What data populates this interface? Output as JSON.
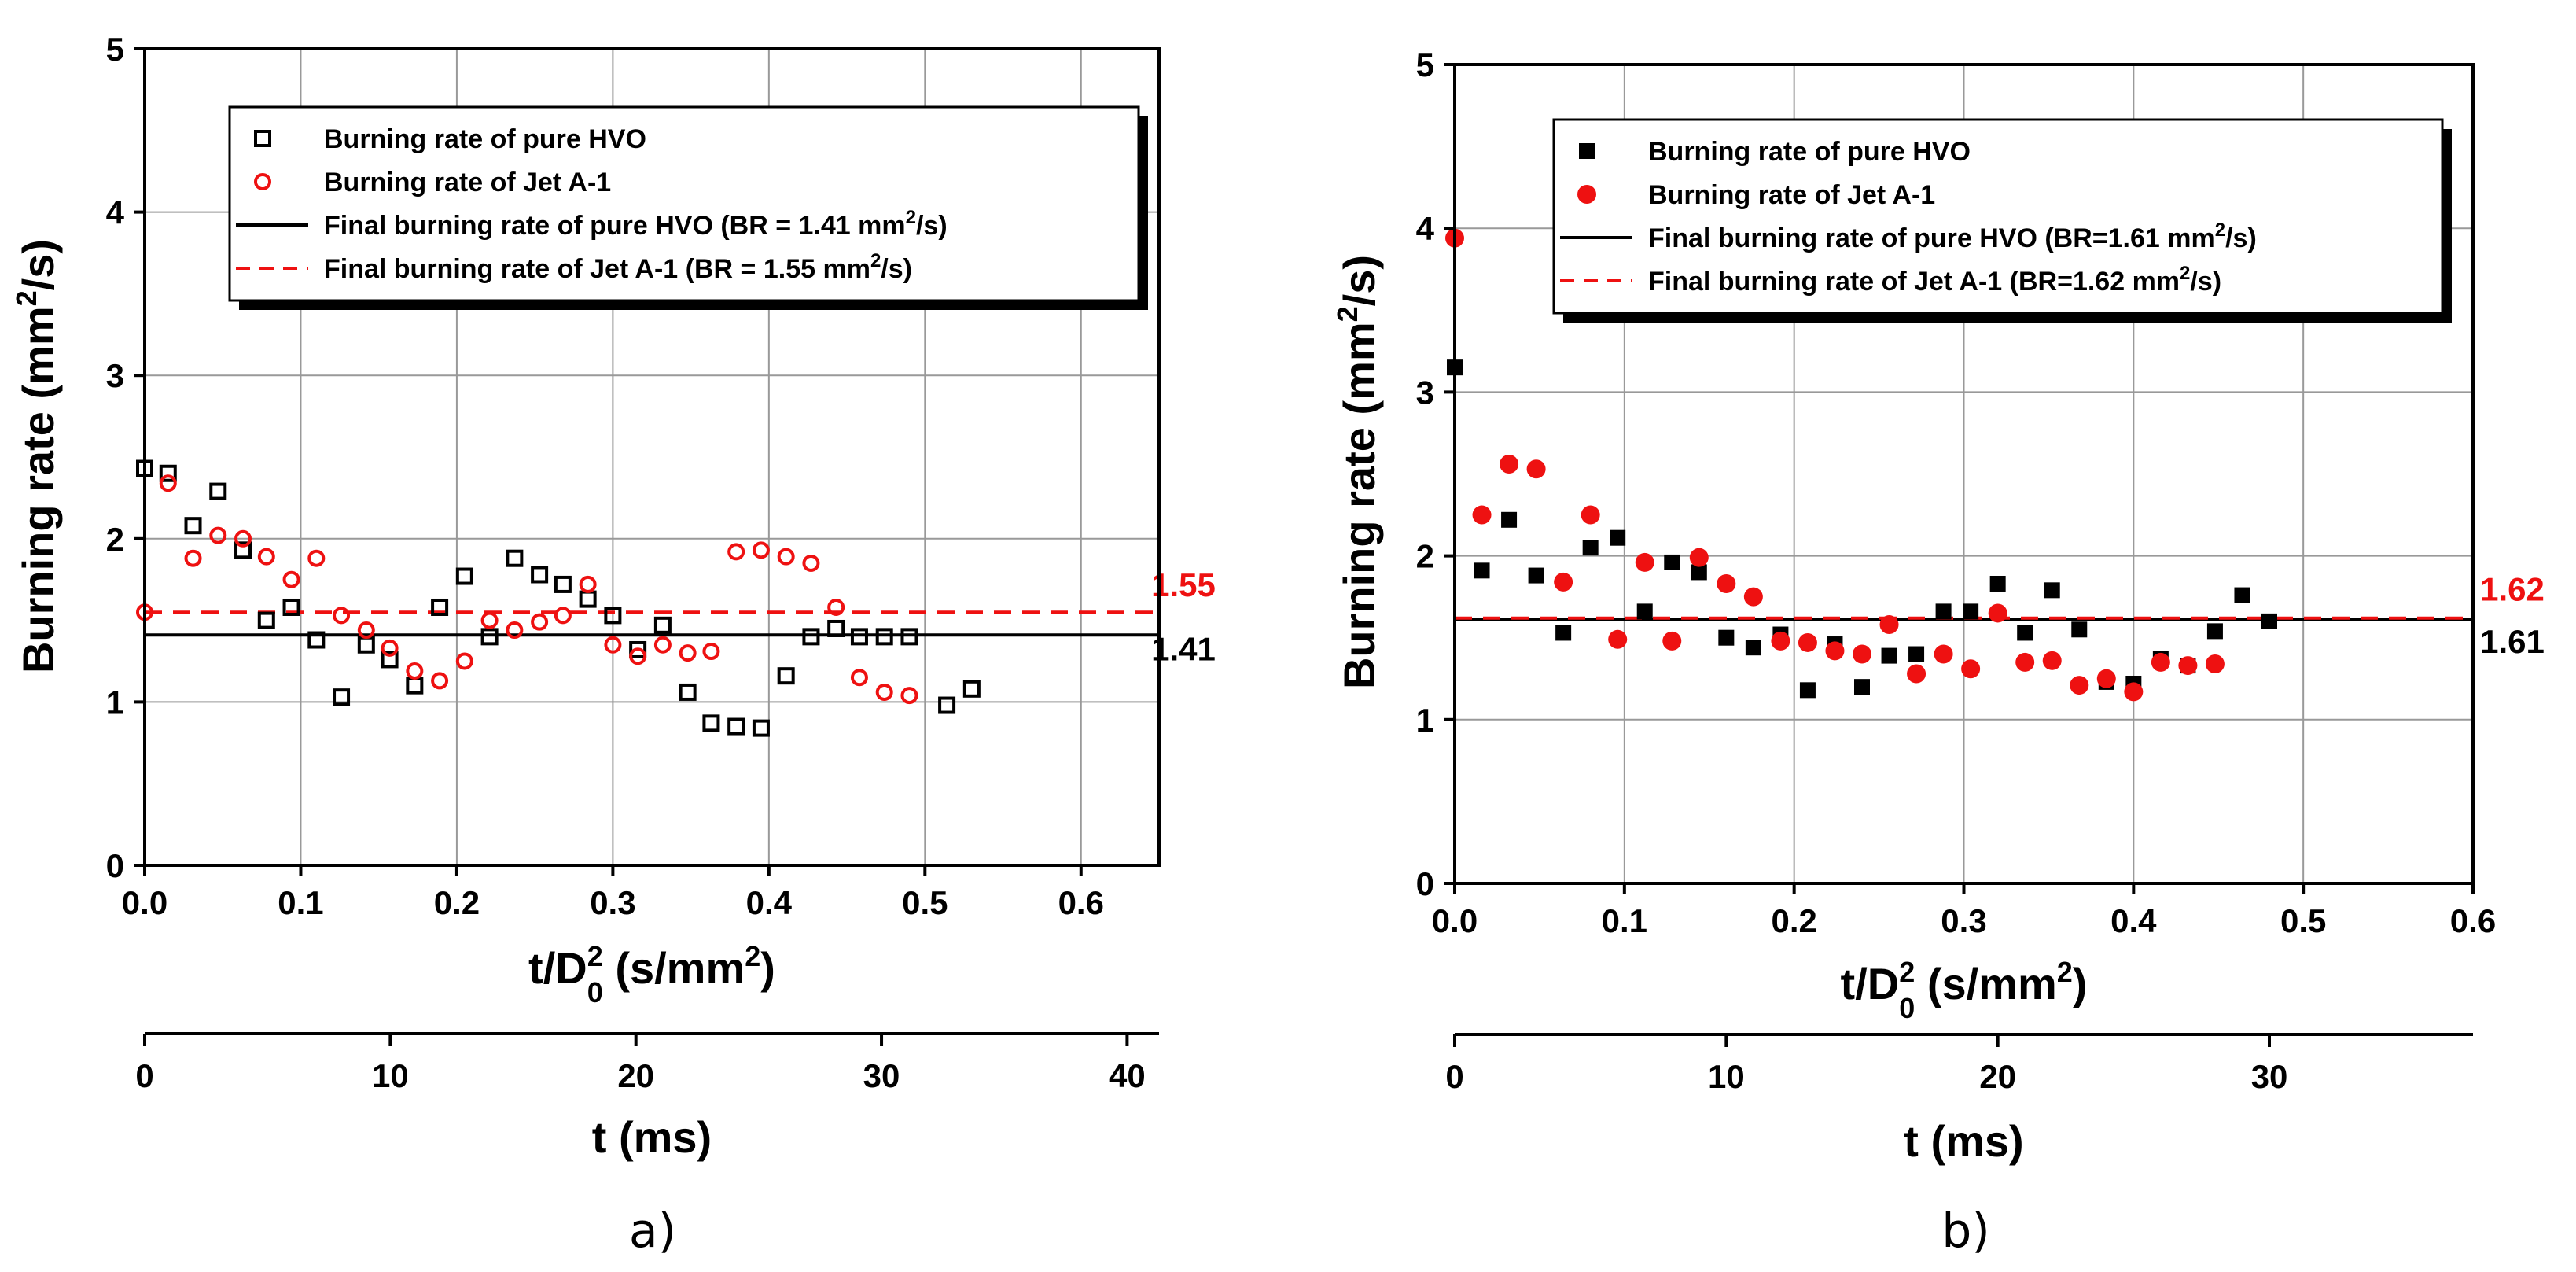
{
  "chart_data": [
    {
      "type": "scatter",
      "panel_label": "a)",
      "marker_style": "hollow",
      "xlabel_main": "t/D",
      "xlabel_sup": "2",
      "xlabel_sub": "0",
      "xlabel_units": " (s/mm",
      "xlabel_units_sup": "2",
      "xlabel_close": ")",
      "ylabel_main": "Burning rate (mm",
      "ylabel_sup": "2",
      "ylabel_close": "/s)",
      "x2label": "t (ms)",
      "xlim": [
        0,
        0.65
      ],
      "ylim": [
        0,
        5
      ],
      "x2lim": [
        0,
        41.3
      ],
      "xticks": [
        "0.0",
        "0.1",
        "0.2",
        "0.3",
        "0.4",
        "0.5",
        "0.6"
      ],
      "xtick_values": [
        0,
        0.1,
        0.2,
        0.3,
        0.4,
        0.5,
        0.6
      ],
      "yticks": [
        "0",
        "1",
        "2",
        "3",
        "4",
        "5"
      ],
      "ytick_values": [
        0,
        1,
        2,
        3,
        4,
        5
      ],
      "x2ticks": [
        "0",
        "10",
        "20",
        "30",
        "40"
      ],
      "x2tick_values": [
        0,
        10,
        20,
        30,
        40
      ],
      "grid": true,
      "legend_position": "top-right",
      "series": [
        {
          "name": "Burning rate of pure HVO",
          "color": "#000000",
          "marker": "square",
          "x": [
            0.0,
            0.015,
            0.031,
            0.047,
            0.063,
            0.078,
            0.094,
            0.11,
            0.126,
            0.142,
            0.157,
            0.173,
            0.189,
            0.205,
            0.221,
            0.237,
            0.253,
            0.268,
            0.284,
            0.3,
            0.316,
            0.332,
            0.348,
            0.363,
            0.379,
            0.395,
            0.411,
            0.427,
            0.443,
            0.458,
            0.474,
            0.49,
            0.514,
            0.53
          ],
          "y": [
            2.43,
            2.4,
            2.08,
            2.29,
            1.93,
            1.5,
            1.58,
            1.38,
            1.03,
            1.35,
            1.26,
            1.1,
            1.58,
            1.77,
            1.4,
            1.88,
            1.78,
            1.72,
            1.63,
            1.53,
            1.32,
            1.47,
            1.06,
            0.87,
            0.85,
            0.84,
            1.16,
            1.4,
            1.45,
            1.4,
            1.4,
            1.4,
            0.98,
            1.08
          ]
        },
        {
          "name": "Burning rate of Jet A-1",
          "color": "#ee1111",
          "marker": "circle",
          "x": [
            0.0,
            0.015,
            0.031,
            0.047,
            0.063,
            0.078,
            0.094,
            0.11,
            0.126,
            0.142,
            0.157,
            0.173,
            0.189,
            0.205,
            0.221,
            0.237,
            0.253,
            0.268,
            0.284,
            0.3,
            0.316,
            0.332,
            0.348,
            0.363,
            0.379,
            0.395,
            0.411,
            0.427,
            0.443,
            0.458,
            0.474,
            0.49
          ],
          "y": [
            1.55,
            2.34,
            1.88,
            2.02,
            2.0,
            1.89,
            1.75,
            1.88,
            1.53,
            1.44,
            1.33,
            1.19,
            1.13,
            1.25,
            1.5,
            1.44,
            1.49,
            1.53,
            1.72,
            1.35,
            1.28,
            1.35,
            1.3,
            1.31,
            1.92,
            1.93,
            1.89,
            1.85,
            1.58,
            1.15,
            1.06,
            1.04
          ]
        }
      ],
      "reference_lines": [
        {
          "name": "Final burning rate of pure HVO (BR = 1.41 mm",
          "name_sup": "2",
          "name_close": "/s)",
          "y": 1.41,
          "style": "solid",
          "color": "#000000",
          "end_label": "1.41"
        },
        {
          "name": "Final burning rate of Jet A-1 (BR = 1.55 mm",
          "name_sup": "2",
          "name_close": "/s)",
          "y": 1.55,
          "style": "dashed",
          "color": "#ee1111",
          "end_label": "1.55"
        }
      ]
    },
    {
      "type": "scatter",
      "panel_label": "b)",
      "marker_style": "filled",
      "xlabel_main": "t/D",
      "xlabel_sup": "2",
      "xlabel_sub": "0",
      "xlabel_units": " (s/mm",
      "xlabel_units_sup": "2",
      "xlabel_close": ")",
      "ylabel_main": "Burning rate (mm",
      "ylabel_sup": "2",
      "ylabel_close": "/s)",
      "x2label": "t (ms)",
      "xlim": [
        0,
        0.6
      ],
      "ylim": [
        0,
        5
      ],
      "x2lim": [
        0,
        37.5
      ],
      "xticks": [
        "0.0",
        "0.1",
        "0.2",
        "0.3",
        "0.4",
        "0.5",
        "0.6"
      ],
      "xtick_values": [
        0,
        0.1,
        0.2,
        0.3,
        0.4,
        0.5,
        0.6
      ],
      "yticks": [
        "0",
        "1",
        "2",
        "3",
        "4",
        "5"
      ],
      "ytick_values": [
        0,
        1,
        2,
        3,
        4,
        5
      ],
      "x2ticks": [
        "0",
        "10",
        "20",
        "30"
      ],
      "x2tick_values": [
        0,
        10,
        20,
        30
      ],
      "grid": true,
      "legend_position": "top-right",
      "series": [
        {
          "name": "Burning rate of pure HVO",
          "color": "#000000",
          "marker": "square",
          "x": [
            0.0,
            0.016,
            0.032,
            0.048,
            0.064,
            0.08,
            0.096,
            0.112,
            0.128,
            0.144,
            0.16,
            0.176,
            0.192,
            0.208,
            0.224,
            0.24,
            0.256,
            0.272,
            0.288,
            0.304,
            0.32,
            0.336,
            0.352,
            0.368,
            0.384,
            0.4,
            0.416,
            0.432,
            0.448,
            0.464,
            0.48
          ],
          "y": [
            3.15,
            1.91,
            2.22,
            1.88,
            1.53,
            2.05,
            2.11,
            1.66,
            1.96,
            1.9,
            1.5,
            1.44,
            1.52,
            1.18,
            1.46,
            1.2,
            1.39,
            1.4,
            1.66,
            1.66,
            1.83,
            1.53,
            1.79,
            1.55,
            1.23,
            1.22,
            1.37,
            1.33,
            1.54,
            1.76,
            1.6
          ]
        },
        {
          "name": "Burning rate of Jet A-1",
          "color": "#ee1111",
          "marker": "circle",
          "x": [
            0.0,
            0.016,
            0.032,
            0.048,
            0.064,
            0.08,
            0.096,
            0.112,
            0.128,
            0.144,
            0.16,
            0.176,
            0.192,
            0.208,
            0.224,
            0.24,
            0.256,
            0.272,
            0.288,
            0.304,
            0.32,
            0.336,
            0.352,
            0.368,
            0.384,
            0.4,
            0.416,
            0.432,
            0.448
          ],
          "y": [
            3.94,
            2.25,
            2.56,
            2.53,
            1.84,
            2.25,
            1.49,
            1.96,
            1.48,
            1.99,
            1.83,
            1.75,
            1.48,
            1.47,
            1.42,
            1.4,
            1.58,
            1.28,
            1.4,
            1.31,
            1.65,
            1.35,
            1.36,
            1.21,
            1.25,
            1.17,
            1.35,
            1.33,
            1.34
          ]
        }
      ],
      "reference_lines": [
        {
          "name": "Final burning rate of pure HVO (BR=1.61 mm",
          "name_sup": "2",
          "name_close": "/s)",
          "y": 1.61,
          "style": "solid",
          "color": "#000000",
          "end_label": "1.61"
        },
        {
          "name": "Final burning rate of Jet A-1 (BR=1.62 mm",
          "name_sup": "2",
          "name_close": "/s)",
          "y": 1.62,
          "style": "dashed",
          "color": "#ee1111",
          "end_label": "1.62"
        }
      ]
    }
  ]
}
